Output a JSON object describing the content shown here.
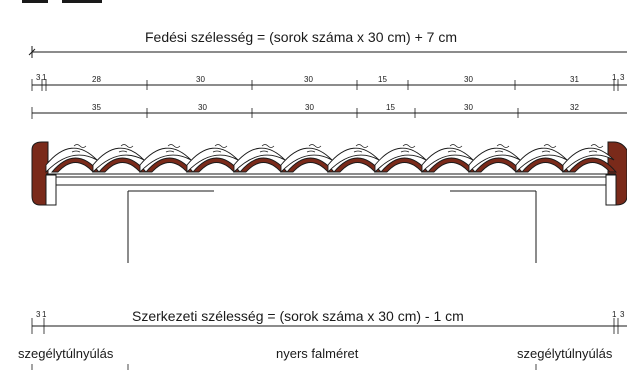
{
  "top_formula": "Fedési szélesség = (sorok száma x 30 cm) + 7 cm",
  "bottom_formula": "Szerkezeti szélesség = (sorok száma x 30 cm) - 1 cm",
  "bottom_left_label": "szegélytúlnyúlás",
  "bottom_center_label": "nyers falméret",
  "bottom_right_label": "szegélytúlnyúlás",
  "row1_dims": [
    "3",
    "1",
    "28",
    "30",
    "30",
    "15",
    "30",
    "31",
    "1",
    "3"
  ],
  "row2_dims": [
    "35",
    "30",
    "30",
    "15",
    "30",
    "32"
  ],
  "bottom_dims_left": [
    "3",
    "1"
  ],
  "bottom_dims_right": [
    "1",
    "3"
  ],
  "colors": {
    "tile_brown": "#7a2a1a",
    "tile_fill": "#ffffff",
    "line": "#1a1a1a"
  }
}
